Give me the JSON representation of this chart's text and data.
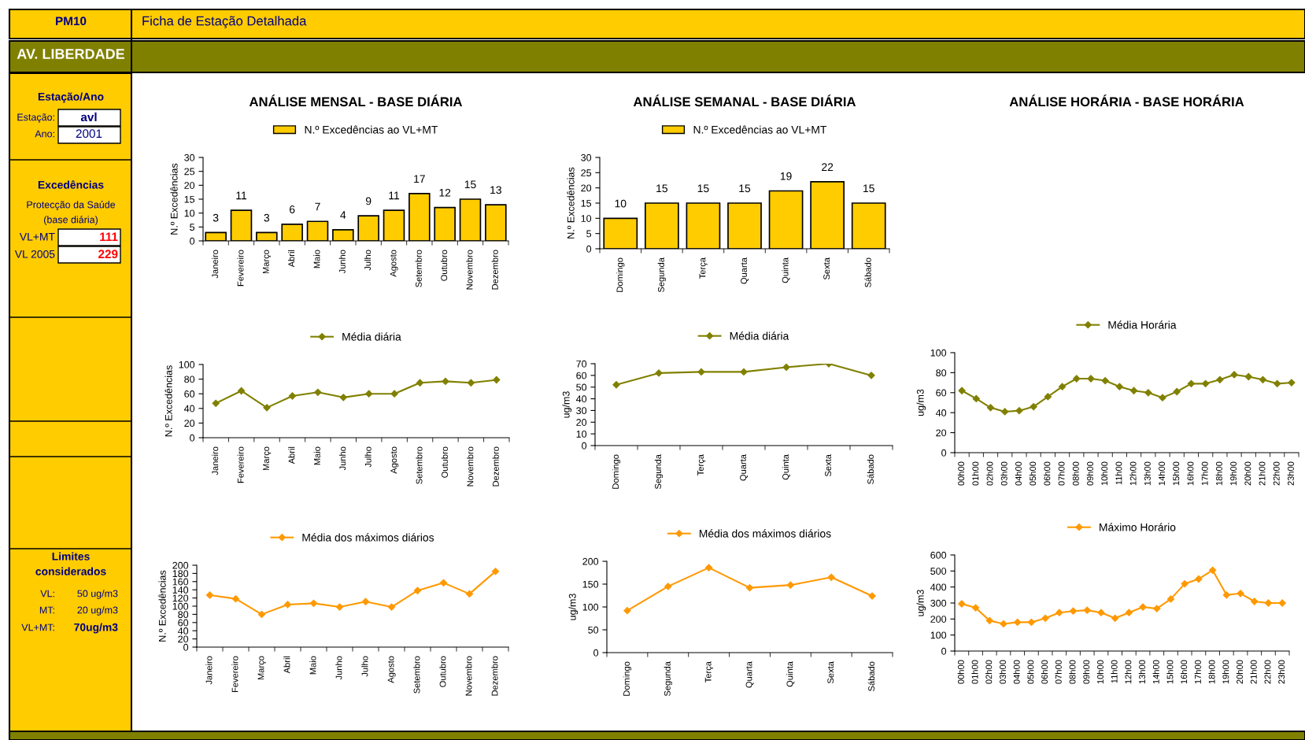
{
  "chart_data": [
    {
      "type": "other",
      "annotations": [
        "PM10",
        "Ficha de Estação Detalhada",
        "AV. LIBERDADE",
        "Estação/Ano",
        "Estação:",
        "avl",
        "Ano:",
        "2001",
        "Excedências",
        "Protecção da Saúde",
        "(base diária)",
        "VL+MT",
        "111",
        "VL 2005",
        "229",
        "Limites",
        "considerados",
        "VL:",
        "50 ug/m3",
        "MT:",
        "20 ug/m3",
        "VL+MT:",
        "70ug/m3"
      ]
    },
    {
      "type": "bar",
      "title": "ANÁLISE MENSAL - BASE DIÁRIA",
      "ylabel": "N.º Excedências",
      "legend": "top",
      "data_labels": true,
      "categories": [
        "Janeiro",
        "Fevereiro",
        "Março",
        "Abril",
        "Maio",
        "Junho",
        "Julho",
        "Agosto",
        "Setembro",
        "Outubro",
        "Novembro",
        "Dezembro"
      ],
      "series": [
        {
          "name": "N.º Excedências ao VL+MT",
          "color": "#ffcc00",
          "values": [
            3,
            11,
            3,
            6,
            7,
            4,
            9,
            11,
            17,
            12,
            15,
            13
          ]
        }
      ],
      "ylim": [
        0,
        30
      ],
      "yticks": [
        0,
        5,
        10,
        15,
        20,
        25,
        30
      ]
    },
    {
      "type": "bar",
      "title": "ANÁLISE SEMANAL - BASE DIÁRIA",
      "ylabel": "N.º Excedências",
      "legend": "top",
      "data_labels": true,
      "categories": [
        "Domingo",
        "Segunda",
        "Terça",
        "Quarta",
        "Quinta",
        "Sexta",
        "Sábado"
      ],
      "series": [
        {
          "name": "N.º Excedências ao VL+MT",
          "color": "#ffcc00",
          "values": [
            10,
            15,
            15,
            15,
            19,
            22,
            15
          ]
        }
      ],
      "ylim": [
        0,
        30
      ],
      "yticks": [
        0,
        5,
        10,
        15,
        20,
        25,
        30
      ]
    },
    {
      "type": "line",
      "ylabel": "N.º Excedências",
      "legend": "top",
      "marker": "diamond",
      "categories": [
        "Janeiro",
        "Fevereiro",
        "Março",
        "Abril",
        "Maio",
        "Junho",
        "Julho",
        "Agosto",
        "Setembro",
        "Outubro",
        "Novembro",
        "Dezembro"
      ],
      "series": [
        {
          "name": "Média diária",
          "color": "#808000",
          "values": [
            47,
            64,
            41,
            57,
            62,
            55,
            60,
            60,
            75,
            77,
            75,
            79
          ]
        }
      ],
      "ylim": [
        0,
        100
      ],
      "yticks": [
        0,
        20,
        40,
        60,
        80,
        100
      ]
    },
    {
      "type": "line",
      "ylabel": "ug/m3",
      "legend": "top",
      "marker": "diamond",
      "categories": [
        "Domingo",
        "Segunda",
        "Terça",
        "Quarta",
        "Quinta",
        "Sexta",
        "Sábado"
      ],
      "series": [
        {
          "name": "Média diária",
          "color": "#808000",
          "values": [
            52,
            62,
            63,
            63,
            67,
            70,
            60
          ]
        }
      ],
      "ylim": [
        0,
        70
      ],
      "yticks": [
        0,
        10,
        20,
        30,
        40,
        50,
        60,
        70
      ]
    },
    {
      "type": "line",
      "title": "ANÁLISE HORÁRIA - BASE HORÁRIA",
      "ylabel": "ug/m3",
      "legend": "top",
      "marker": "diamond",
      "categories": [
        "00h00",
        "01h00",
        "02h00",
        "03h00",
        "04h00",
        "05h00",
        "06h00",
        "07h00",
        "08h00",
        "09h00",
        "10h00",
        "11h00",
        "12h00",
        "13h00",
        "14h00",
        "15h00",
        "16h00",
        "17h00",
        "18h00",
        "19h00",
        "20h00",
        "21h00",
        "22h00",
        "23h00"
      ],
      "series": [
        {
          "name": "Média Horária",
          "color": "#808000",
          "values": [
            62,
            54,
            45,
            41,
            42,
            46,
            56,
            66,
            74,
            74,
            72,
            66,
            62,
            60,
            55,
            61,
            69,
            69,
            73,
            78,
            76,
            73,
            69,
            70
          ]
        }
      ],
      "ylim": [
        0,
        100
      ],
      "yticks": [
        0,
        20,
        40,
        60,
        80,
        100
      ]
    },
    {
      "type": "line",
      "ylabel": "N.º Excedências",
      "legend": "top",
      "marker": "diamond",
      "categories": [
        "Janeiro",
        "Fevereiro",
        "Março",
        "Abril",
        "Maio",
        "Junho",
        "Julho",
        "Agosto",
        "Setembro",
        "Outubro",
        "Novembro",
        "Dezembro"
      ],
      "series": [
        {
          "name": "Média dos máximos diários",
          "color": "#ff9900",
          "values": [
            127,
            118,
            80,
            104,
            107,
            98,
            111,
            98,
            138,
            157,
            130,
            185
          ]
        }
      ],
      "ylim": [
        0,
        200
      ],
      "yticks": [
        0,
        20,
        40,
        60,
        80,
        100,
        120,
        140,
        160,
        180,
        200
      ]
    },
    {
      "type": "line",
      "ylabel": "ug/m3",
      "legend": "top",
      "marker": "diamond",
      "categories": [
        "Domingo",
        "Segunda",
        "Terça",
        "Quarta",
        "Quinta",
        "Sexta",
        "Sábado"
      ],
      "series": [
        {
          "name": "Média dos máximos diários",
          "color": "#ff9900",
          "values": [
            92,
            145,
            186,
            142,
            148,
            165,
            124
          ]
        }
      ],
      "ylim": [
        0,
        200
      ],
      "yticks": [
        0,
        50,
        100,
        150,
        200
      ]
    },
    {
      "type": "line",
      "ylabel": "ug/m3",
      "legend": "top",
      "marker": "diamond",
      "categories": [
        "00h00",
        "01h00",
        "02h00",
        "03h00",
        "04h00",
        "05h00",
        "06h00",
        "07h00",
        "08h00",
        "09h00",
        "10h00",
        "11h00",
        "12h00",
        "13h00",
        "14h00",
        "15h00",
        "16h00",
        "17h00",
        "18h00",
        "19h00",
        "20h00",
        "21h00",
        "22h00",
        "23h00"
      ],
      "series": [
        {
          "name": "Máximo Horário",
          "color": "#ff9900",
          "values": [
            295,
            270,
            190,
            170,
            180,
            180,
            205,
            240,
            250,
            255,
            240,
            205,
            240,
            275,
            265,
            325,
            420,
            450,
            505,
            350,
            360,
            310,
            300,
            300
          ]
        }
      ],
      "ylim": [
        0,
        600
      ],
      "yticks": [
        0,
        100,
        200,
        300,
        400,
        500,
        600
      ]
    }
  ]
}
